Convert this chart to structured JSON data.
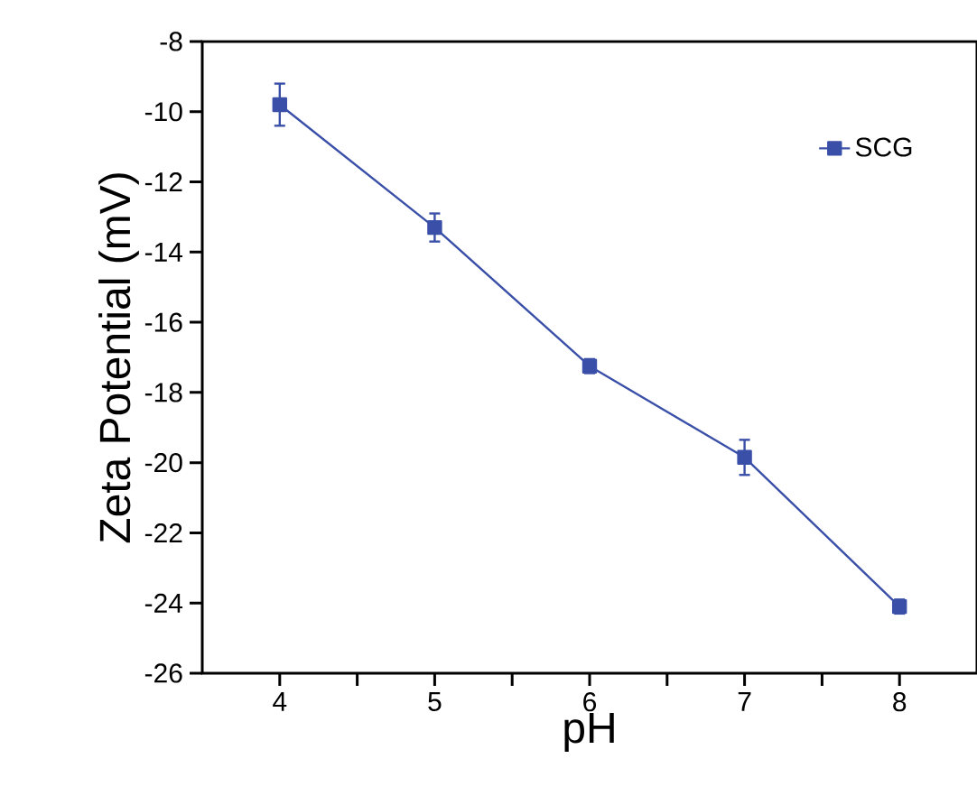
{
  "chart_data": {
    "type": "line",
    "xlabel": "pH",
    "ylabel": "Zeta Potential (mV)",
    "x": [
      4,
      5,
      6,
      7,
      8
    ],
    "series": [
      {
        "name": "SCG",
        "color": "#3a4fa8",
        "values": [
          -9.8,
          -13.3,
          -17.25,
          -19.85,
          -24.1
        ],
        "errors": [
          0.6,
          0.4,
          0.2,
          0.5,
          0.2
        ]
      }
    ],
    "xlim": [
      3.5,
      8.5
    ],
    "xticks": [
      4,
      {
        "value": 4.5,
        "label": null
      },
      5,
      {
        "value": 5.5,
        "label": null
      },
      6,
      {
        "value": 6.5,
        "label": null
      },
      7,
      {
        "value": 7.5,
        "label": null
      },
      8
    ],
    "ylim": [
      -26,
      -8
    ],
    "yticks": [
      -26,
      -24,
      -22,
      -20,
      -18,
      -16,
      -14,
      -12,
      -10,
      -8
    ],
    "marker": "square",
    "line_style": "solid",
    "legend": "top right",
    "grid": false
  }
}
